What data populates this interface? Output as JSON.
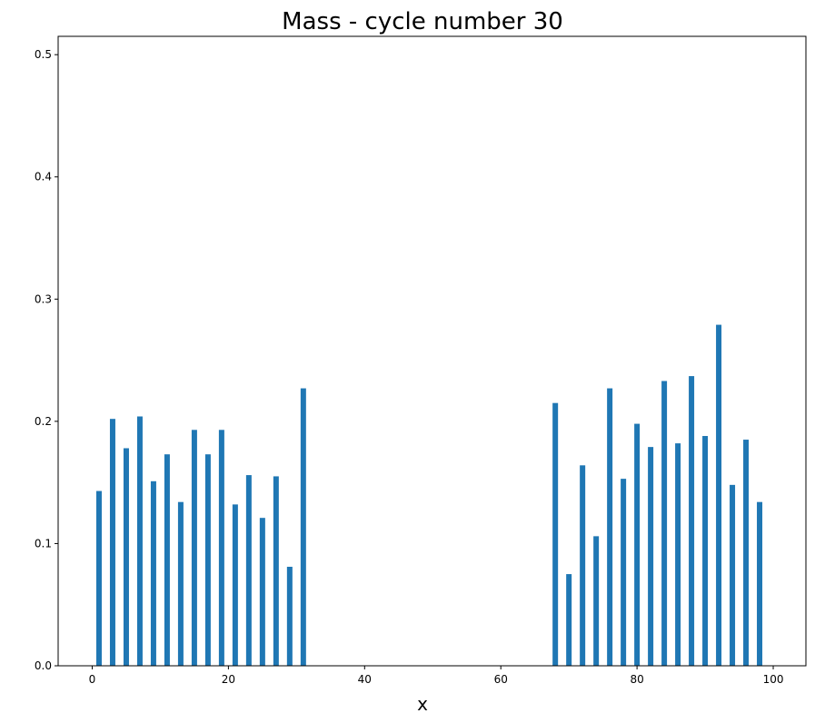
{
  "chart_data": {
    "type": "bar",
    "title": "Mass - cycle number 30",
    "xlabel": "x",
    "ylabel": "",
    "xlim": [
      -5,
      104.8
    ],
    "ylim": [
      0,
      0.515
    ],
    "xticks": [
      0,
      20,
      40,
      60,
      80,
      100
    ],
    "yticks": [
      0.0,
      0.1,
      0.2,
      0.3,
      0.4,
      0.5
    ],
    "xtick_labels": [
      "0",
      "20",
      "40",
      "60",
      "80",
      "100"
    ],
    "ytick_labels": [
      "0.0",
      "0.1",
      "0.2",
      "0.3",
      "0.4",
      "0.5"
    ],
    "bar_width": 0.8,
    "color": "#1f77b4",
    "grid": false,
    "series": [
      {
        "x": [
          1,
          3,
          5,
          7,
          9,
          11,
          13,
          15,
          17,
          19,
          21,
          23,
          25,
          27,
          29,
          31,
          68,
          70,
          72,
          74,
          76,
          78,
          80,
          82,
          84,
          86,
          88,
          90,
          92,
          94,
          96,
          98
        ],
        "values": [
          0.143,
          0.202,
          0.178,
          0.204,
          0.151,
          0.173,
          0.134,
          0.193,
          0.173,
          0.193,
          0.132,
          0.156,
          0.121,
          0.155,
          0.081,
          0.227,
          0.215,
          0.075,
          0.164,
          0.106,
          0.227,
          0.153,
          0.198,
          0.179,
          0.233,
          0.182,
          0.237,
          0.188,
          0.279,
          0.148,
          0.185,
          0.134
        ]
      }
    ]
  }
}
